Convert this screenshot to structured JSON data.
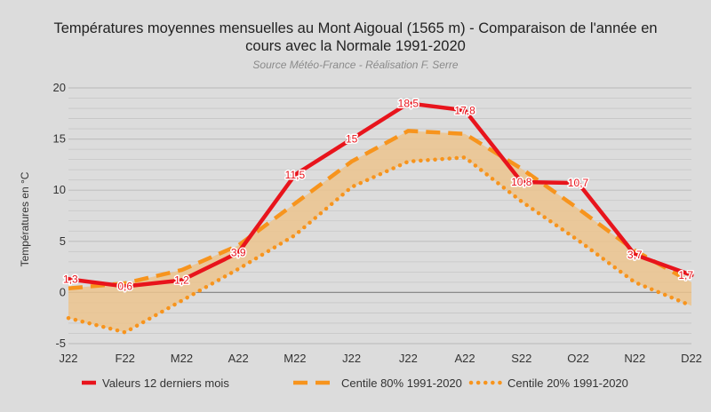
{
  "chart_data": {
    "type": "line",
    "title_line1": "Températures moyennes mensuelles au Mont Aigoual (1565 m) - Comparaison de l'année en",
    "title_line2": "cours avec la Normale 1991-2020",
    "subtitle": "Source Météo-France - Réalisation F. Serre",
    "ylabel": "Températures en °C",
    "xlabel": "",
    "ylim": [
      -5,
      20
    ],
    "yticks": [
      "-5",
      "0",
      "5",
      "10",
      "15",
      "20"
    ],
    "categories": [
      "J22",
      "F22",
      "M22",
      "A22",
      "M22",
      "J22",
      "J22",
      "A22",
      "S22",
      "O22",
      "N22",
      "D22"
    ],
    "grid": true,
    "legend_position": "bottom",
    "series": [
      {
        "name": "Valeurs 12 derniers mois",
        "color": "#e8141c",
        "style": "solid",
        "values": [
          1.3,
          0.6,
          1.2,
          3.9,
          11.5,
          15,
          18.5,
          17.8,
          10.8,
          10.7,
          3.7,
          1.7
        ],
        "labels": [
          "1,3",
          "0,6",
          "1,2",
          "3,9",
          "11,5",
          "15",
          "18,5",
          "17,8",
          "10,8",
          "10,7",
          "3,7",
          "1,7"
        ]
      },
      {
        "name": "Centile 80% 1991-2020",
        "color": "#f7941d",
        "style": "dashed",
        "values": [
          0.4,
          0.9,
          2.2,
          4.6,
          8.7,
          12.8,
          15.8,
          15.5,
          12.1,
          8.2,
          4.1,
          1.0
        ]
      },
      {
        "name": "Centile 20% 1991-2020",
        "color": "#f7941d",
        "style": "dotted",
        "values": [
          -2.5,
          -3.9,
          -0.8,
          2.3,
          5.6,
          10.3,
          12.8,
          13.2,
          8.9,
          5.1,
          1.0,
          -1.3
        ]
      }
    ],
    "band_fill_color": "#ecc48e",
    "background_color": "#dcdcdc",
    "grid_color": "#c6c6c6"
  }
}
